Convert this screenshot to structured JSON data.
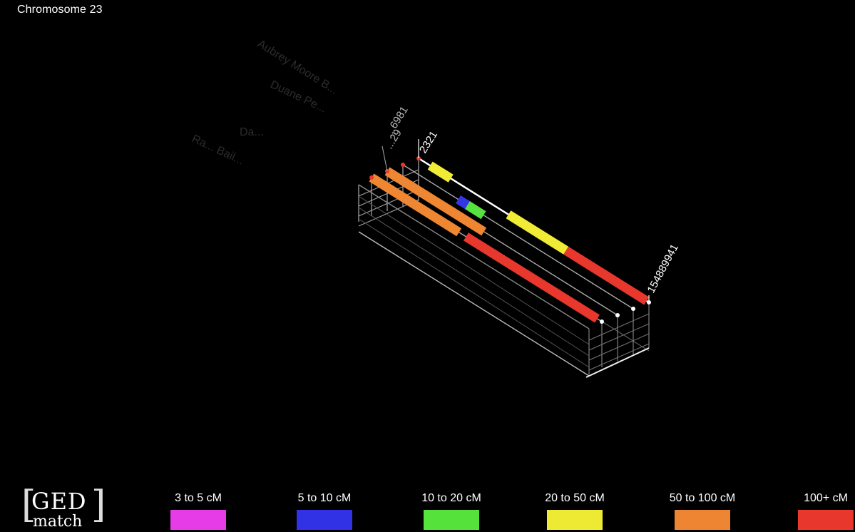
{
  "title": "Chromosome 23",
  "diagram": {
    "start_labels": [
      "2321",
      "...29",
      "...6981"
    ],
    "end_label": "154889941",
    "faded_names": [
      "Aubrey Moore B...",
      "Duane Pe...",
      "Da...",
      "Ra... Bail..."
    ],
    "segments": [
      {
        "lane": 0,
        "start": 0.05,
        "end": 0.14,
        "color": "#f0ec36"
      },
      {
        "lane": 0,
        "start": 0.39,
        "end": 0.64,
        "color": "#f0ec36"
      },
      {
        "lane": 0,
        "start": 0.64,
        "end": 0.99,
        "color": "#e8372d"
      },
      {
        "lane": 1,
        "start": 0.24,
        "end": 0.28,
        "color": "#3535e6"
      },
      {
        "lane": 1,
        "start": 0.28,
        "end": 0.35,
        "color": "#57e23f"
      },
      {
        "lane": 2,
        "start": 0.0,
        "end": 0.42,
        "color": "#ef8632"
      },
      {
        "lane": 3,
        "start": 0.0,
        "end": 0.38,
        "color": "#ef8632"
      },
      {
        "lane": 3,
        "start": 0.41,
        "end": 0.98,
        "color": "#e8372d"
      }
    ]
  },
  "logo": {
    "top": "GED",
    "bottom": "match"
  },
  "legend": [
    {
      "label": "3 to 5 cM",
      "color": "#e53ce8"
    },
    {
      "label": "5 to 10 cM",
      "color": "#3131e6"
    },
    {
      "label": "10 to 20 cM",
      "color": "#54e23b"
    },
    {
      "label": "20 to 50 cM",
      "color": "#eeea34"
    },
    {
      "label": "50 to 100 cM",
      "color": "#ee8532"
    },
    {
      "label": "100+ cM",
      "color": "#e8372d"
    }
  ]
}
